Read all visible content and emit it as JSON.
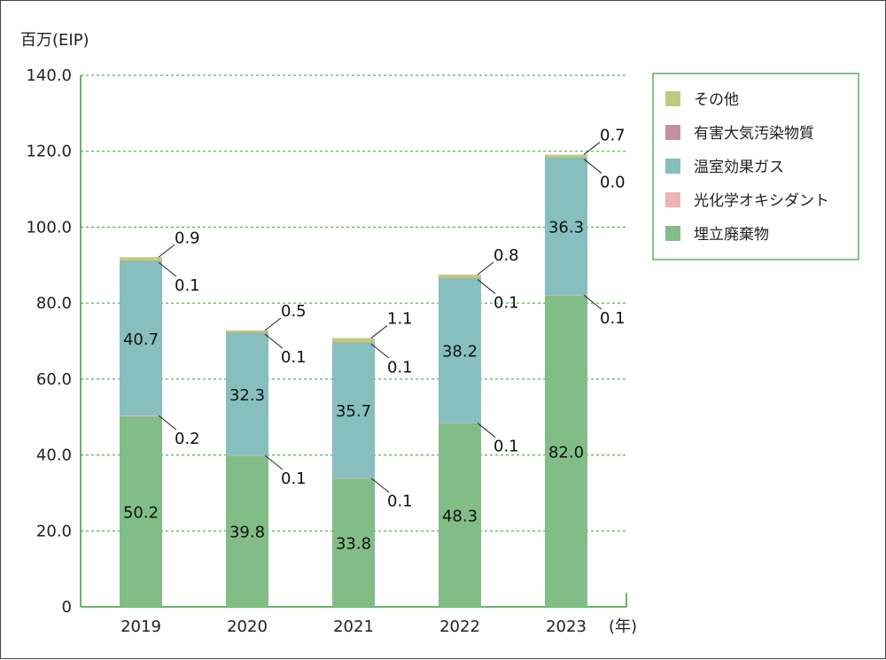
{
  "chart_data": {
    "type": "bar",
    "stacked": true,
    "ylabel": "百万(EIP)",
    "xlabel": "(年)",
    "ylim": [
      0,
      140
    ],
    "yticks": [
      "0",
      "20.0",
      "40.0",
      "60.0",
      "80.0",
      "100.0",
      "120.0",
      "140.0"
    ],
    "grid": true,
    "legend_position": "top-right",
    "categories": [
      "2019",
      "2020",
      "2021",
      "2022",
      "2023"
    ],
    "series": [
      {
        "name": "埋立廃棄物",
        "color": "#82bd88",
        "values": [
          50.2,
          39.8,
          33.8,
          48.3,
          82.0
        ],
        "labels": [
          "50.2",
          "39.8",
          "33.8",
          "48.3",
          "82.0"
        ]
      },
      {
        "name": "光化学オキシダント",
        "color": "#f0b4b4",
        "values": [
          0.2,
          0.1,
          0.1,
          0.1,
          0.1
        ],
        "labels": [
          "0.2",
          "0.1",
          "0.1",
          "0.1",
          "0.1"
        ]
      },
      {
        "name": "温室効果ガス",
        "color": "#86bfbd",
        "values": [
          40.7,
          32.3,
          35.7,
          38.2,
          36.3
        ],
        "labels": [
          "40.7",
          "32.3",
          "35.7",
          "38.2",
          "36.3"
        ]
      },
      {
        "name": "有害大気汚染物質",
        "color": "#c3909e",
        "values": [
          0.1,
          0.1,
          0.1,
          0.1,
          0.0
        ],
        "labels": [
          "0.1",
          "0.1",
          "0.1",
          "0.1",
          "0.0"
        ]
      },
      {
        "name": "その他",
        "color": "#bfcb7c",
        "values": [
          0.9,
          0.5,
          1.1,
          0.8,
          0.7
        ],
        "labels": [
          "0.9",
          "0.5",
          "1.1",
          "0.8",
          "0.7"
        ]
      }
    ],
    "legend_order": [
      "その他",
      "有害大気汚染物質",
      "温室効果ガス",
      "光化学オキシダント",
      "埋立廃棄物"
    ]
  },
  "colors": {
    "grid": "#3a9a3a",
    "axis": "#3a9a3a",
    "legend_border": "#3a9a3a"
  }
}
